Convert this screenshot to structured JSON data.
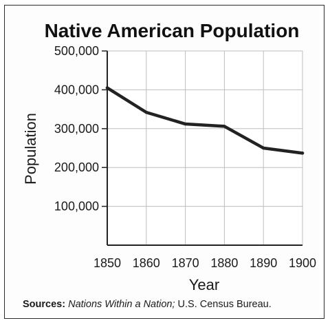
{
  "chart_data": {
    "type": "line",
    "title": "Native American Population",
    "xlabel": "Year",
    "ylabel": "Population",
    "x": [
      1850,
      1860,
      1870,
      1880,
      1890,
      1900
    ],
    "x_tick_labels": [
      "1850",
      "1860",
      "1870",
      "1880",
      "1890",
      "1900"
    ],
    "y_ticks": [
      100000,
      200000,
      300000,
      400000,
      500000
    ],
    "y_tick_labels": [
      "100,000",
      "200,000",
      "300,000",
      "400,000",
      "500,000"
    ],
    "xlim": [
      1850,
      1900
    ],
    "ylim": [
      0,
      500000
    ],
    "grid": true,
    "series": [
      {
        "values": [
          405000,
          342000,
          312000,
          306000,
          250000,
          237000
        ],
        "color": "#222222"
      }
    ]
  },
  "source": {
    "label": "Sources:",
    "works": "Nations Within a Nation;",
    "rest": "U.S. Census Bureau."
  }
}
